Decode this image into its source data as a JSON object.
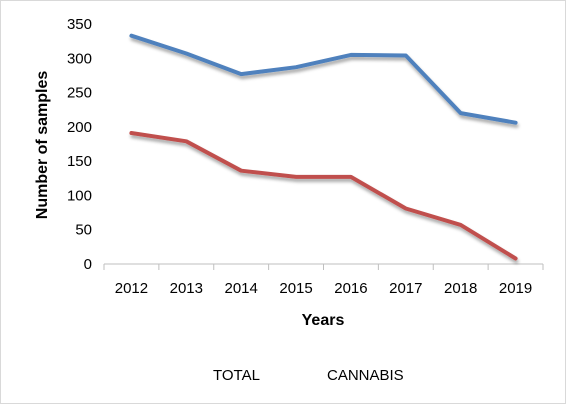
{
  "chart_data": {
    "type": "line",
    "title": "",
    "xlabel": "Years",
    "ylabel": "Number of samples",
    "categories": [
      "2012",
      "2013",
      "2014",
      "2015",
      "2016",
      "2017",
      "2018",
      "2019"
    ],
    "ylim": [
      0,
      350
    ],
    "yticks": [
      0,
      50,
      100,
      150,
      200,
      250,
      300,
      350
    ],
    "grid": false,
    "legend_position": "bottom",
    "series": [
      {
        "name": "TOTAL",
        "color": "#4f81bd",
        "values": [
          333,
          307,
          277,
          287,
          305,
          304,
          220,
          206
        ]
      },
      {
        "name": "CANNABIS",
        "color": "#c0504d",
        "values": [
          191,
          179,
          136,
          127,
          127,
          81,
          57,
          8
        ]
      }
    ]
  }
}
